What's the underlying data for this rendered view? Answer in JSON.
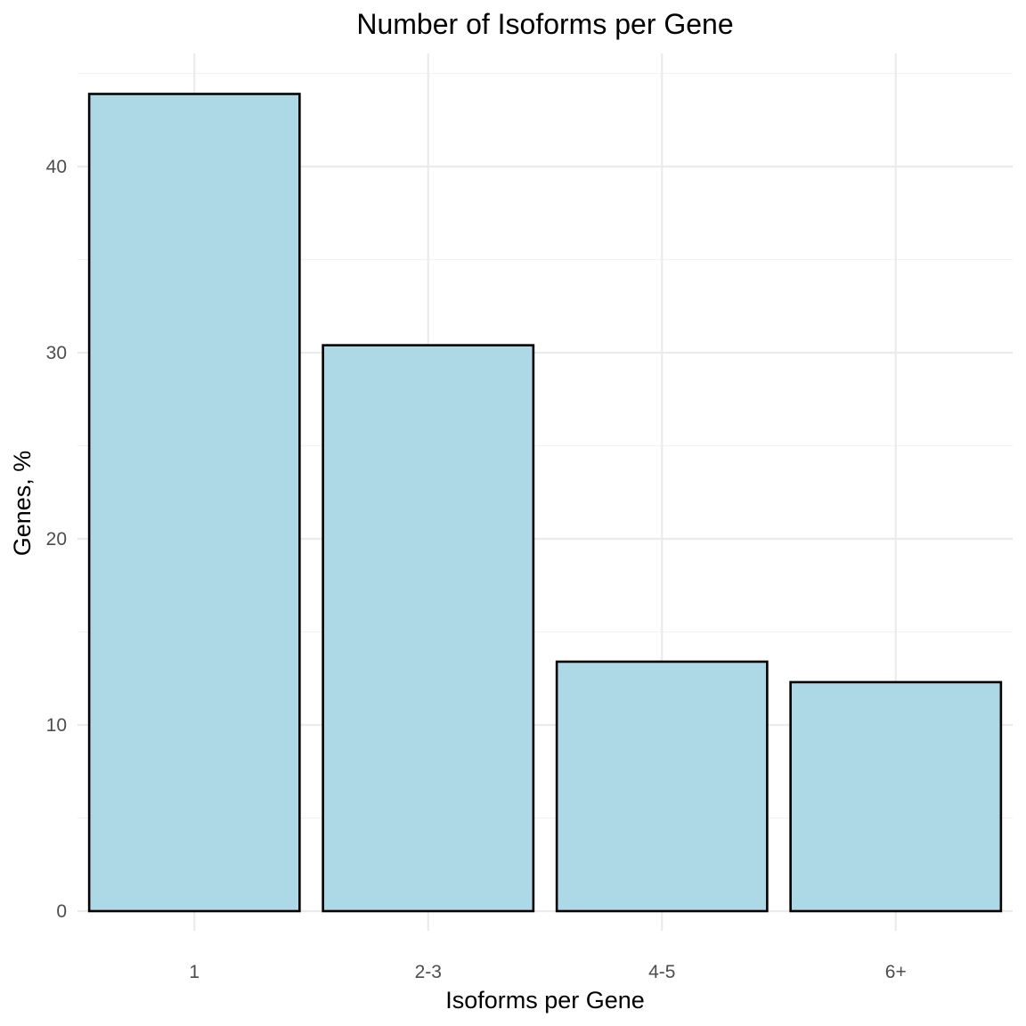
{
  "chart_data": {
    "type": "bar",
    "title": "Number of Isoforms per Gene",
    "xlabel": "Isoforms per Gene",
    "ylabel": "Genes, %",
    "categories": [
      "1",
      "2-3",
      "4-5",
      "6+"
    ],
    "values": [
      43.9,
      30.4,
      13.4,
      12.3
    ],
    "ylim": [
      0,
      46
    ],
    "yticks": [
      0,
      10,
      20,
      30,
      40
    ],
    "ytick_labels": [
      "0",
      "10",
      "20",
      "30",
      "40"
    ],
    "grid": true,
    "legend": "none",
    "colors": {
      "bar_fill": "#add8e6",
      "bar_outline": "#000000"
    }
  }
}
